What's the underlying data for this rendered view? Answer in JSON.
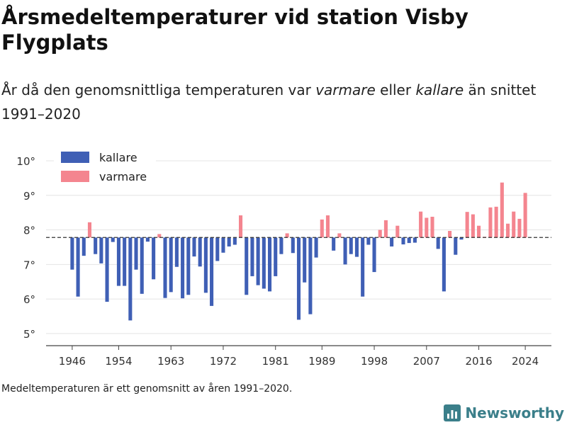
{
  "title": "Årsmedeltemperaturer vid station Visby Flygplats",
  "subtitle": {
    "part1": "År då den genomsnittliga temperaturen var ",
    "warm_word": "varmare",
    "part2": " eller ",
    "cold_word": "kallare",
    "part3": " än snittet 1991–2020"
  },
  "footnote": "Medeltemperaturen är ett genomsnitt av åren 1991–2020.",
  "brand": {
    "name": "Newsworthy",
    "icon": "newsworthy-bar-icon",
    "color": "#3b7f8a"
  },
  "colors": {
    "colder": "#3f5fb5",
    "warmer": "#f4858f",
    "baseline": "#333333"
  },
  "chart_data": {
    "type": "bar",
    "baseline": 7.78,
    "ylim": [
      4.65,
      10.45
    ],
    "yticks": [
      5,
      6,
      7,
      8,
      9,
      10
    ],
    "ytick_suffix": "°",
    "xticks": [
      1946,
      1954,
      1963,
      1972,
      1981,
      1989,
      1998,
      2007,
      2016,
      2024
    ],
    "xlim": [
      1941.5,
      2028.5
    ],
    "legend": {
      "position": "top-left",
      "entries": [
        {
          "label": "kallare",
          "key": "colder"
        },
        {
          "label": "varmare",
          "key": "warmer"
        }
      ]
    },
    "grid": true,
    "years": [
      1946,
      1947,
      1948,
      1949,
      1950,
      1951,
      1952,
      1953,
      1954,
      1955,
      1956,
      1957,
      1958,
      1959,
      1960,
      1961,
      1962,
      1963,
      1964,
      1965,
      1966,
      1967,
      1968,
      1969,
      1970,
      1971,
      1972,
      1973,
      1974,
      1975,
      1976,
      1977,
      1978,
      1979,
      1980,
      1981,
      1982,
      1983,
      1984,
      1985,
      1986,
      1987,
      1988,
      1989,
      1990,
      1991,
      1992,
      1993,
      1994,
      1995,
      1996,
      1997,
      1998,
      1999,
      2000,
      2001,
      2002,
      2003,
      2004,
      2005,
      2006,
      2007,
      2008,
      2009,
      2010,
      2011,
      2012,
      2013,
      2014,
      2015,
      2016,
      2017,
      2018,
      2019,
      2020,
      2021,
      2022,
      2023,
      2024
    ],
    "values": [
      6.85,
      6.07,
      7.25,
      8.22,
      7.3,
      7.03,
      5.92,
      7.65,
      6.38,
      6.38,
      5.38,
      6.85,
      6.15,
      7.66,
      6.57,
      7.88,
      6.03,
      6.2,
      6.93,
      6.02,
      6.12,
      7.23,
      6.94,
      6.18,
      5.8,
      7.1,
      7.34,
      7.52,
      7.57,
      8.42,
      6.12,
      6.66,
      6.4,
      6.3,
      6.22,
      6.66,
      7.3,
      7.9,
      7.33,
      5.4,
      6.48,
      5.56,
      7.2,
      8.3,
      8.42,
      7.4,
      7.9,
      7.0,
      7.3,
      7.22,
      6.07,
      7.57,
      6.78,
      8.0,
      8.28,
      7.52,
      8.12,
      7.58,
      7.62,
      7.63,
      8.53,
      8.35,
      8.38,
      7.45,
      6.22,
      7.97,
      7.28,
      7.72,
      8.52,
      8.45,
      8.12,
      7.8,
      8.65,
      8.67,
      9.37,
      8.18,
      8.53,
      8.32,
      9.07
    ]
  }
}
